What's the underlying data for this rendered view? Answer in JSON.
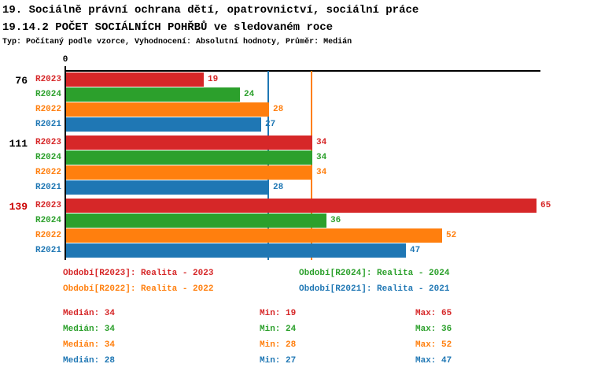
{
  "header": {
    "title_line1": "19. Sociálně právní ochrana dětí, opatrovnictví, sociální práce",
    "title_line2": "19.14.2 POČET SOCIÁLNÍCH POHŘBŮ ve sledovaném roce",
    "subtitle": "Typ: Počítaný podle vzorce, Vyhodnocení: Absolutní hodnoty, Průměr: Medián"
  },
  "chart_data": {
    "type": "bar",
    "orientation": "horizontal",
    "value_axis_start_label": "0",
    "value_range": [
      0,
      65
    ],
    "grid": false,
    "series_order": [
      "R2023",
      "R2024",
      "R2022",
      "R2021"
    ],
    "series_colors": {
      "R2023": "#d62728",
      "R2024": "#2ca02c",
      "R2022": "#ff7f0e",
      "R2021": "#1f77b4"
    },
    "groups": [
      {
        "label": "76",
        "label_color": "#000000",
        "values": {
          "R2023": 19,
          "R2024": 24,
          "R2022": 28,
          "R2021": 27
        }
      },
      {
        "label": "111",
        "label_color": "#000000",
        "values": {
          "R2023": 34,
          "R2024": 34,
          "R2022": 34,
          "R2021": 28
        }
      },
      {
        "label": "139",
        "label_color": "#cc0000",
        "values": {
          "R2023": 65,
          "R2024": 36,
          "R2022": 52,
          "R2021": 47
        }
      }
    ],
    "median_lines": [
      {
        "series": "R2021",
        "value": 28,
        "color": "#1f77b4"
      },
      {
        "series": "R2022",
        "value": 34,
        "color": "#ff7f0e"
      }
    ]
  },
  "legend": {
    "items": [
      {
        "label": "Období[R2023]: Realita - 2023",
        "color": "#d62728"
      },
      {
        "label": "Období[R2024]: Realita - 2024",
        "color": "#2ca02c"
      },
      {
        "label": "Období[R2022]: Realita - 2022",
        "color": "#ff7f0e"
      },
      {
        "label": "Období[R2021]: Realita - 2021",
        "color": "#1f77b4"
      }
    ]
  },
  "stats": {
    "labels": {
      "median": "Medián",
      "min": "Min",
      "max": "Max"
    },
    "rows": [
      {
        "series": "R2023",
        "median": 34,
        "min": 19,
        "max": 65,
        "color": "#d62728"
      },
      {
        "series": "R2024",
        "median": 34,
        "min": 24,
        "max": 36,
        "color": "#2ca02c"
      },
      {
        "series": "R2022",
        "median": 34,
        "min": 28,
        "max": 52,
        "color": "#ff7f0e"
      },
      {
        "series": "R2021",
        "median": 28,
        "min": 27,
        "max": 47,
        "color": "#1f77b4"
      }
    ]
  }
}
